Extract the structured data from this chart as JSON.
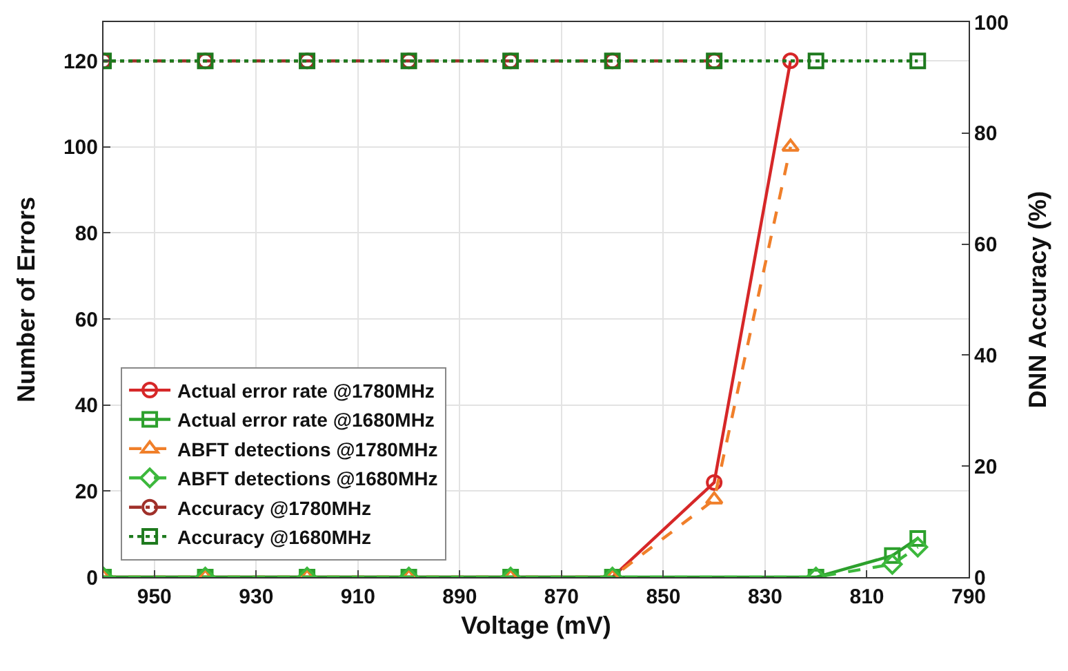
{
  "chart_data": {
    "type": "line",
    "xlabel": "Voltage (mV)",
    "ylabel": "Number of Errors",
    "y2label": "DNN Accuracy (%)",
    "xlim": [
      960,
      790
    ],
    "xticks": [
      950,
      930,
      910,
      890,
      870,
      850,
      830,
      810,
      790
    ],
    "ylim": [
      0,
      129
    ],
    "yticks": [
      0,
      20,
      40,
      60,
      80,
      100,
      120
    ],
    "y2lim": [
      0,
      100
    ],
    "y2ticks": [
      0,
      20,
      40,
      60,
      80,
      100
    ],
    "grid": true,
    "legend": "bottom left",
    "series": [
      {
        "name": "Actual error rate @1780MHz",
        "color": "#d62728",
        "marker": "circle",
        "line_style": "solid",
        "x": [
          960,
          940,
          920,
          900,
          880,
          860,
          840,
          825
        ],
        "values": [
          0,
          0,
          0,
          0,
          0,
          0,
          22,
          120
        ]
      },
      {
        "name": "Actual error rate @1680MHz",
        "color": "#2ca02c",
        "marker": "square",
        "line_style": "solid",
        "x": [
          960,
          940,
          920,
          900,
          880,
          860,
          820,
          805,
          800
        ],
        "values": [
          0,
          0,
          0,
          0,
          0,
          0,
          0,
          5,
          9
        ]
      },
      {
        "name": "ABFT detections @1780MHz",
        "color": "#f07f2a",
        "marker": "triangle",
        "line_style": "dashed",
        "x": [
          960,
          940,
          920,
          900,
          880,
          860,
          840,
          825
        ],
        "values": [
          0,
          0,
          0,
          0,
          0,
          0,
          18,
          100
        ]
      },
      {
        "name": "ABFT detections @1680MHz",
        "color": "#3cb83c",
        "marker": "diamond",
        "line_style": "dashed",
        "x": [
          960,
          940,
          920,
          900,
          880,
          860,
          820,
          805,
          800
        ],
        "values": [
          0,
          0,
          0,
          0,
          0,
          0,
          0,
          3,
          7
        ]
      },
      {
        "name": "Accuracy @1780MHz",
        "color": "#a0302a",
        "marker": "circle",
        "line_style": "dashdot",
        "axis": "y2",
        "x": [
          960,
          940,
          920,
          900,
          880,
          860,
          840
        ],
        "values": [
          93,
          93,
          93,
          93,
          93,
          93,
          93
        ]
      },
      {
        "name": "Accuracy @1680MHz",
        "color": "#1e7a1e",
        "marker": "square",
        "line_style": "dotted",
        "axis": "y2",
        "x": [
          960,
          940,
          920,
          900,
          880,
          860,
          840,
          820,
          800
        ],
        "values": [
          93,
          93,
          93,
          93,
          93,
          93,
          93,
          93,
          93
        ]
      }
    ]
  }
}
